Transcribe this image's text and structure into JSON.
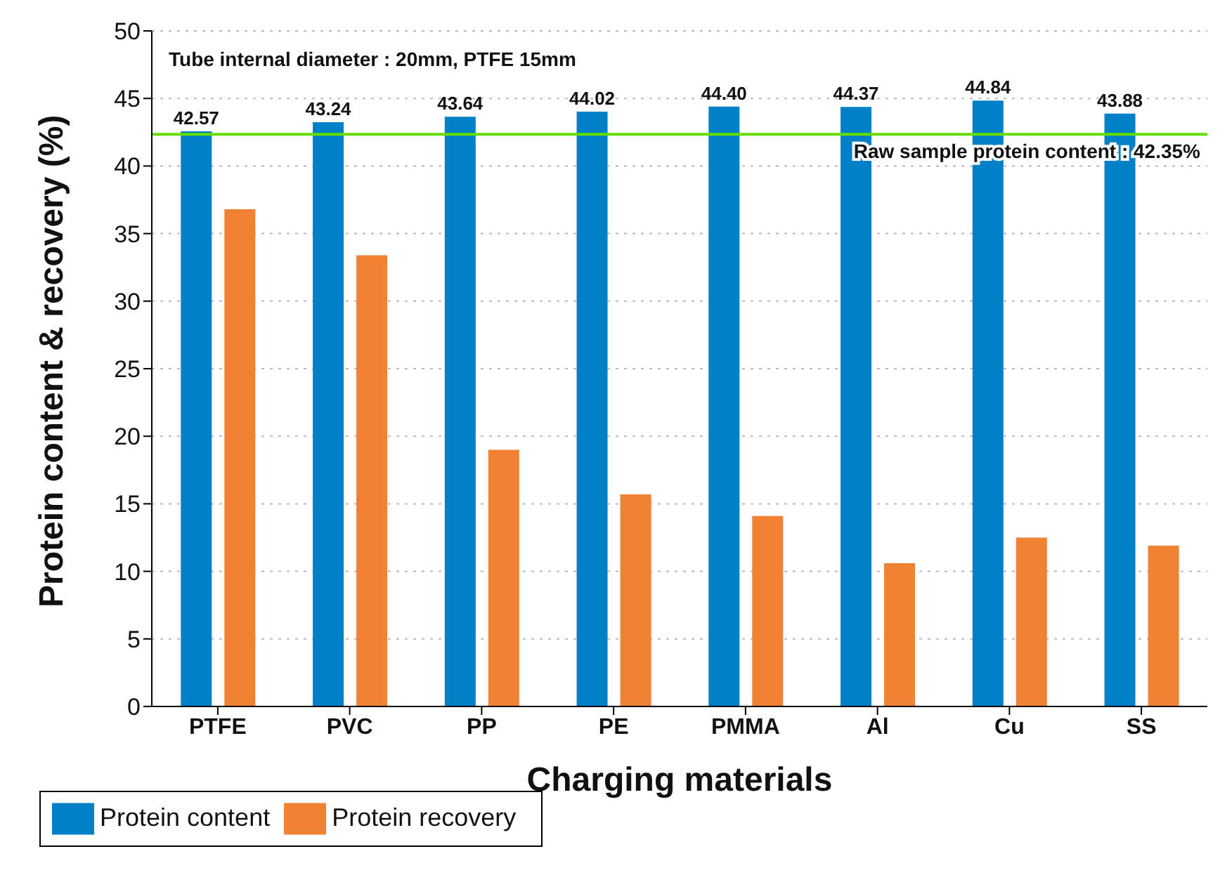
{
  "chart_data": {
    "type": "bar",
    "xlabel": "Charging materials",
    "ylabel": "Protein content & recovery (%)",
    "categories": [
      "PTFE",
      "PVC",
      "PP",
      "PE",
      "PMMA",
      "Al",
      "Cu",
      "SS"
    ],
    "series": [
      {
        "name": "Protein content",
        "color": "#0080c6",
        "values": [
          42.57,
          43.24,
          43.64,
          44.02,
          44.4,
          44.37,
          44.84,
          43.88
        ],
        "value_labels": [
          "42.57",
          "43.24",
          "43.64",
          "44.02",
          "44.40",
          "44.37",
          "44.84",
          "43.88"
        ]
      },
      {
        "name": "Protein recovery",
        "color": "#f28233",
        "values": [
          36.8,
          33.4,
          19.0,
          15.7,
          14.1,
          10.6,
          12.5,
          11.9
        ]
      }
    ],
    "ylim": [
      0,
      50
    ],
    "yticks": [
      0,
      5,
      10,
      15,
      20,
      25,
      30,
      35,
      40,
      45,
      50
    ],
    "grid": "y",
    "legend": "bottom left",
    "ref_lines": [
      {
        "axis": "y",
        "value": 42.35,
        "label": "Raw sample protein content : 42.35%",
        "color": "#66dd00"
      }
    ],
    "annotations": [
      "Tube internal diameter : 20mm, PTFE 15mm"
    ]
  }
}
